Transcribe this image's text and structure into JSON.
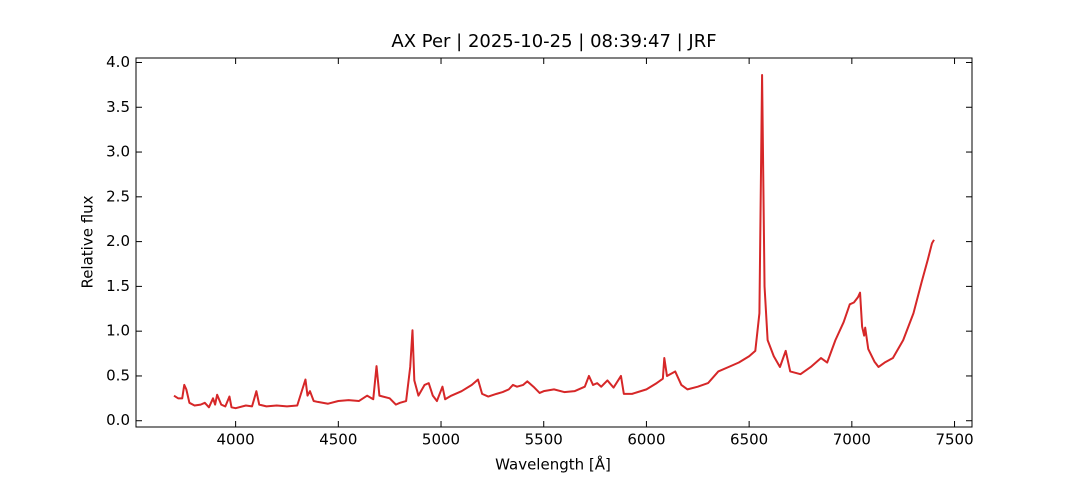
{
  "chart_data": {
    "type": "line",
    "title": "AX Per | 2025-10-25 | 08:39:47 | JRF",
    "x_label": "Wavelength [Å]",
    "y_label": "Relative flux",
    "x": [
      3700,
      3720,
      3740,
      3750,
      3760,
      3775,
      3800,
      3830,
      3850,
      3870,
      3890,
      3900,
      3910,
      3930,
      3950,
      3970,
      3980,
      4000,
      4050,
      4080,
      4101,
      4115,
      4150,
      4200,
      4250,
      4300,
      4340,
      4350,
      4362,
      4380,
      4400,
      4450,
      4500,
      4550,
      4600,
      4640,
      4670,
      4686,
      4700,
      4750,
      4780,
      4800,
      4830,
      4850,
      4861,
      4870,
      4890,
      4920,
      4940,
      4960,
      4980,
      5007,
      5020,
      5050,
      5100,
      5150,
      5180,
      5200,
      5230,
      5270,
      5300,
      5330,
      5350,
      5370,
      5400,
      5420,
      5450,
      5480,
      5500,
      5550,
      5600,
      5650,
      5700,
      5720,
      5740,
      5760,
      5780,
      5810,
      5840,
      5876,
      5890,
      5930,
      6000,
      6050,
      6080,
      6087,
      6100,
      6140,
      6170,
      6200,
      6250,
      6300,
      6350,
      6400,
      6450,
      6500,
      6530,
      6550,
      6563,
      6575,
      6590,
      6620,
      6650,
      6678,
      6700,
      6750,
      6800,
      6850,
      6880,
      6920,
      6960,
      6990,
      7010,
      7030,
      7040,
      7050,
      7060,
      7065,
      7080,
      7110,
      7130,
      7160,
      7200,
      7250,
      7300,
      7340,
      7370,
      7390,
      7400
    ],
    "series": [
      {
        "name": "AX Per",
        "color": "#d62728",
        "values": [
          0.28,
          0.25,
          0.25,
          0.4,
          0.35,
          0.2,
          0.17,
          0.18,
          0.2,
          0.15,
          0.25,
          0.18,
          0.29,
          0.18,
          0.16,
          0.27,
          0.15,
          0.14,
          0.17,
          0.16,
          0.33,
          0.18,
          0.16,
          0.17,
          0.16,
          0.17,
          0.46,
          0.28,
          0.33,
          0.22,
          0.21,
          0.19,
          0.22,
          0.23,
          0.22,
          0.28,
          0.24,
          0.61,
          0.28,
          0.25,
          0.18,
          0.2,
          0.22,
          0.6,
          1.01,
          0.45,
          0.28,
          0.4,
          0.42,
          0.28,
          0.22,
          0.38,
          0.24,
          0.28,
          0.33,
          0.4,
          0.46,
          0.3,
          0.27,
          0.3,
          0.32,
          0.35,
          0.4,
          0.38,
          0.4,
          0.44,
          0.38,
          0.31,
          0.33,
          0.35,
          0.32,
          0.33,
          0.38,
          0.5,
          0.4,
          0.42,
          0.38,
          0.45,
          0.37,
          0.5,
          0.3,
          0.3,
          0.35,
          0.42,
          0.47,
          0.7,
          0.5,
          0.55,
          0.4,
          0.35,
          0.38,
          0.42,
          0.55,
          0.6,
          0.65,
          0.72,
          0.78,
          1.2,
          3.86,
          1.5,
          0.9,
          0.72,
          0.6,
          0.78,
          0.55,
          0.52,
          0.6,
          0.7,
          0.65,
          0.9,
          1.1,
          1.3,
          1.32,
          1.38,
          1.43,
          1.05,
          0.95,
          1.04,
          0.8,
          0.66,
          0.6,
          0.65,
          0.7,
          0.9,
          1.2,
          1.55,
          1.8,
          1.98,
          2.02
        ]
      }
    ],
    "xlim": [
      3515,
      7585
    ],
    "ylim": [
      -0.07,
      4.05
    ],
    "xticks": [
      4000,
      4500,
      5000,
      5500,
      6000,
      6500,
      7000,
      7500
    ],
    "yticks": [
      {
        "value": 0,
        "label": "0.0"
      },
      0.5,
      {
        "value": 1,
        "label": "1.0"
      },
      1.5,
      {
        "value": 2,
        "label": "2.0"
      },
      2.5,
      {
        "value": 3,
        "label": "3.0"
      },
      3.5,
      {
        "value": 4,
        "label": "4.0"
      }
    ]
  }
}
